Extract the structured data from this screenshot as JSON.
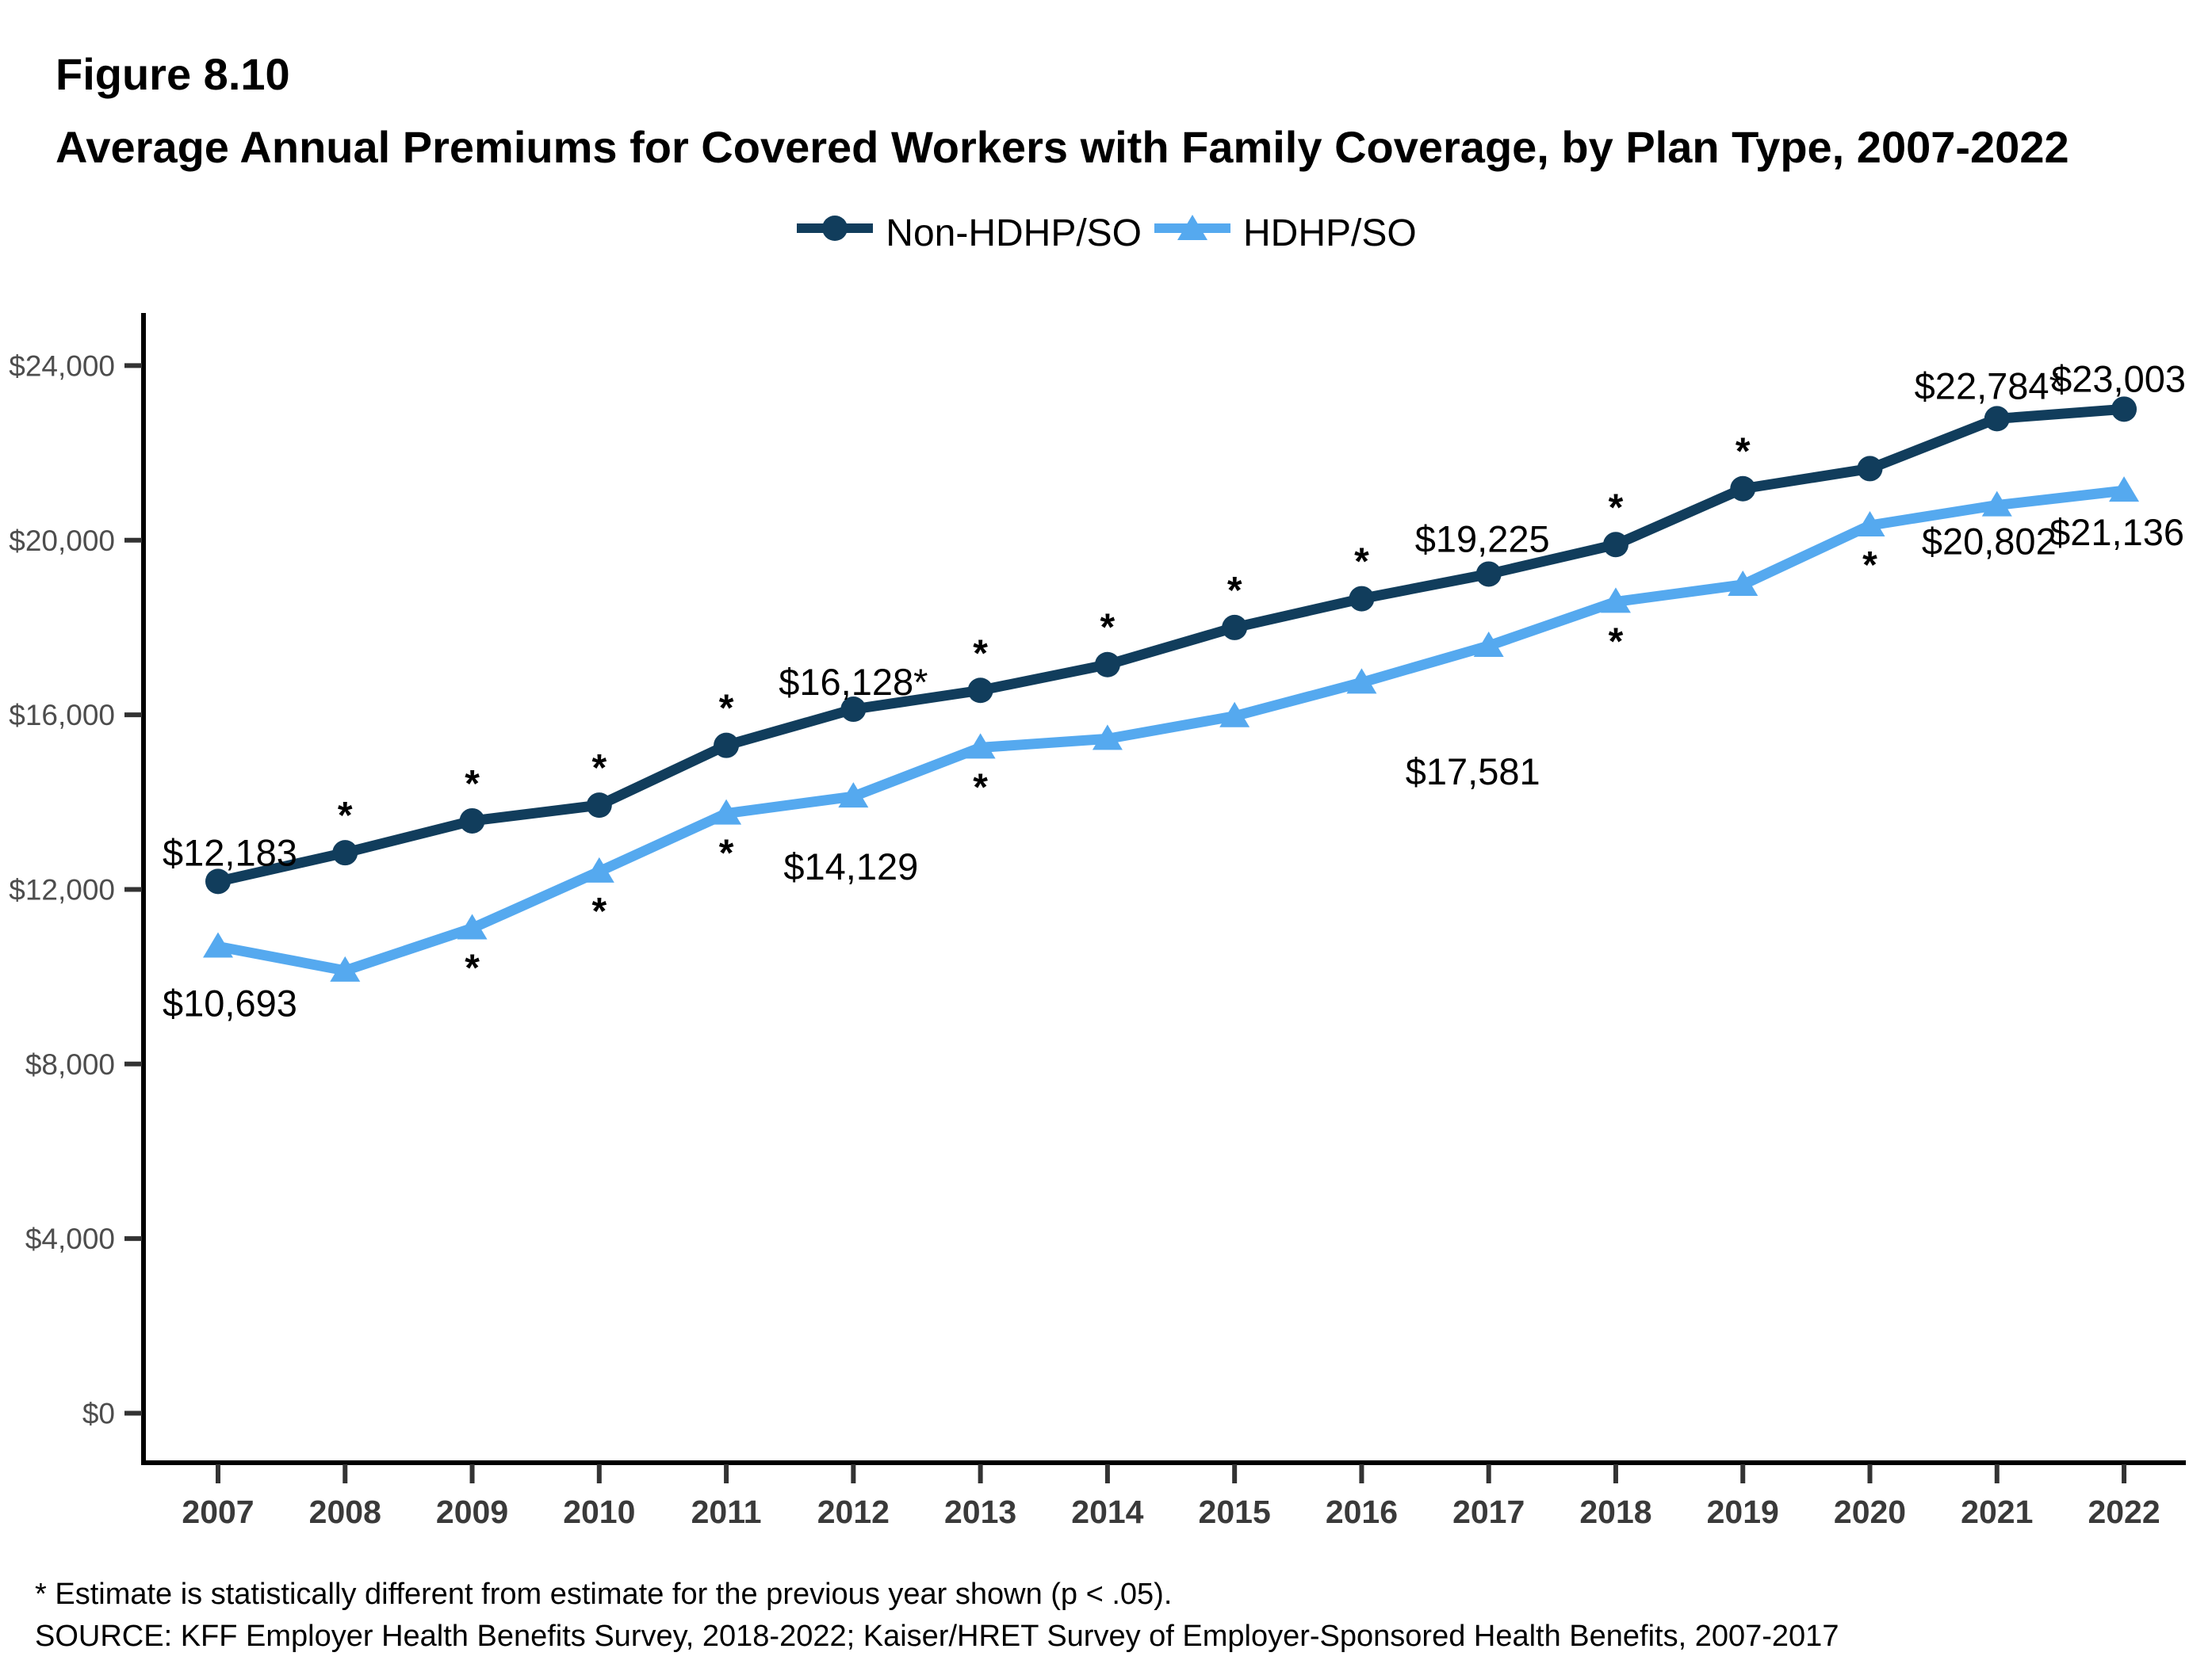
{
  "figure": {
    "label": "Figure 8.10",
    "title": "Average Annual Premiums for Covered Workers with Family Coverage, by Plan Type, 2007-2022"
  },
  "legend": [
    {
      "label": "Non-HDHP/SO",
      "color": "#113D5C",
      "marker": "circle"
    },
    {
      "label": "HDHP/SO",
      "color": "#55A9EF",
      "marker": "triangle"
    }
  ],
  "footnotes": {
    "line1": "* Estimate is statistically different from estimate for the previous year shown (p < .05).",
    "line2": "SOURCE: KFF Employer Health Benefits Survey, 2018-2022; Kaiser/HRET Survey of Employer-Sponsored Health Benefits, 2007-2017"
  },
  "chart_data": {
    "type": "line",
    "title": "Average Annual Premiums for Covered Workers with Family Coverage, by Plan Type, 2007-2022",
    "xlabel": "",
    "ylabel": "",
    "grid": false,
    "legend_position": "top",
    "x": [
      2007,
      2008,
      2009,
      2010,
      2011,
      2012,
      2013,
      2014,
      2015,
      2016,
      2017,
      2018,
      2019,
      2020,
      2021,
      2022
    ],
    "ylim": [
      0,
      24000
    ],
    "ytick_step": 4000,
    "ytick_labels": [
      "$0",
      "$4,000",
      "$8,000",
      "$12,000",
      "$16,000",
      "$20,000",
      "$24,000"
    ],
    "series": [
      {
        "name": "Non-HDHP/SO",
        "color": "#113D5C",
        "marker": "circle",
        "values": [
          12183,
          12840,
          13570,
          13930,
          15300,
          16128,
          16560,
          17150,
          18000,
          18660,
          19225,
          19900,
          21180,
          21640,
          22784,
          23003
        ],
        "significant": [
          false,
          true,
          true,
          true,
          true,
          true,
          true,
          true,
          true,
          true,
          false,
          true,
          true,
          false,
          true,
          false
        ],
        "labels": {
          "2007": "$12,183",
          "2012": "$16,128*",
          "2017": "$19,225",
          "2021": "$22,784*",
          "2022": "$23,003"
        }
      },
      {
        "name": "HDHP/SO",
        "color": "#55A9EF",
        "marker": "triangle",
        "values": [
          10693,
          10140,
          11110,
          12410,
          13740,
          14129,
          15250,
          15450,
          15970,
          16740,
          17581,
          18590,
          18980,
          20340,
          20802,
          21136
        ],
        "significant": [
          false,
          false,
          true,
          true,
          true,
          false,
          true,
          false,
          false,
          false,
          false,
          true,
          false,
          true,
          false,
          false
        ],
        "labels": {
          "2007": "$10,693",
          "2012": "$14,129",
          "2017": "$17,581",
          "2021": "$20,802",
          "2022": "$21,136"
        }
      }
    ],
    "sig_note": "* Estimate is statistically different from estimate for the previous year shown (p < .05)."
  }
}
